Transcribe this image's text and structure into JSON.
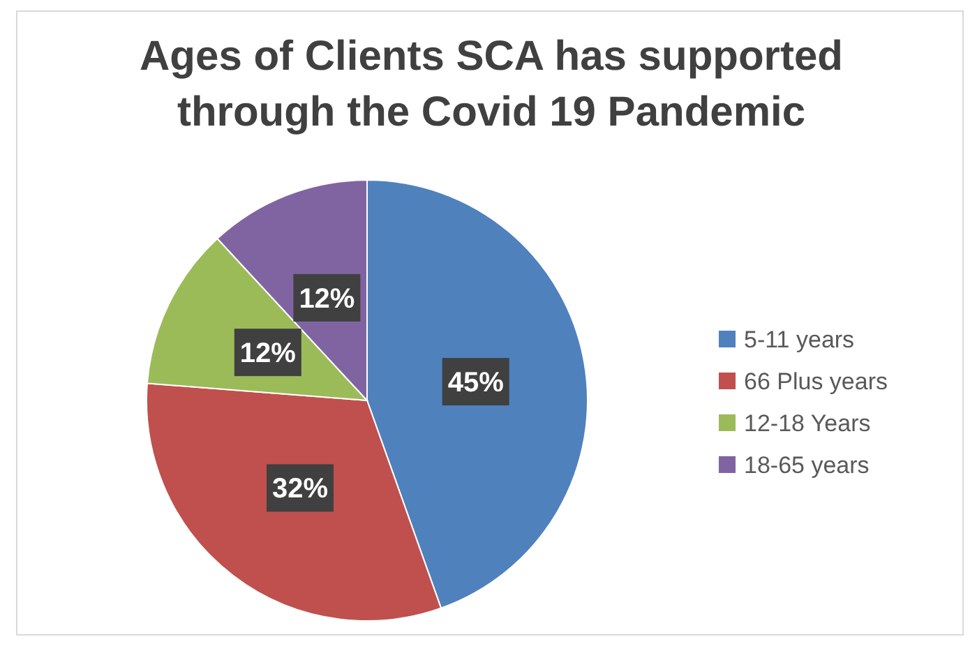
{
  "chart_data": {
    "type": "pie",
    "title": "Ages of Clients SCA has supported\nthrough the Covid 19 Pandemic",
    "categories": [
      "5-11 years",
      "66 Plus years",
      "12-18 Years",
      "18-65 years"
    ],
    "values": [
      45,
      32,
      12,
      12
    ],
    "colors": [
      "#4f81bd",
      "#c0504d",
      "#9bbb59",
      "#8064a2"
    ],
    "value_labels": [
      "45%",
      "32%",
      "12%",
      "12%"
    ],
    "legend": "right"
  }
}
